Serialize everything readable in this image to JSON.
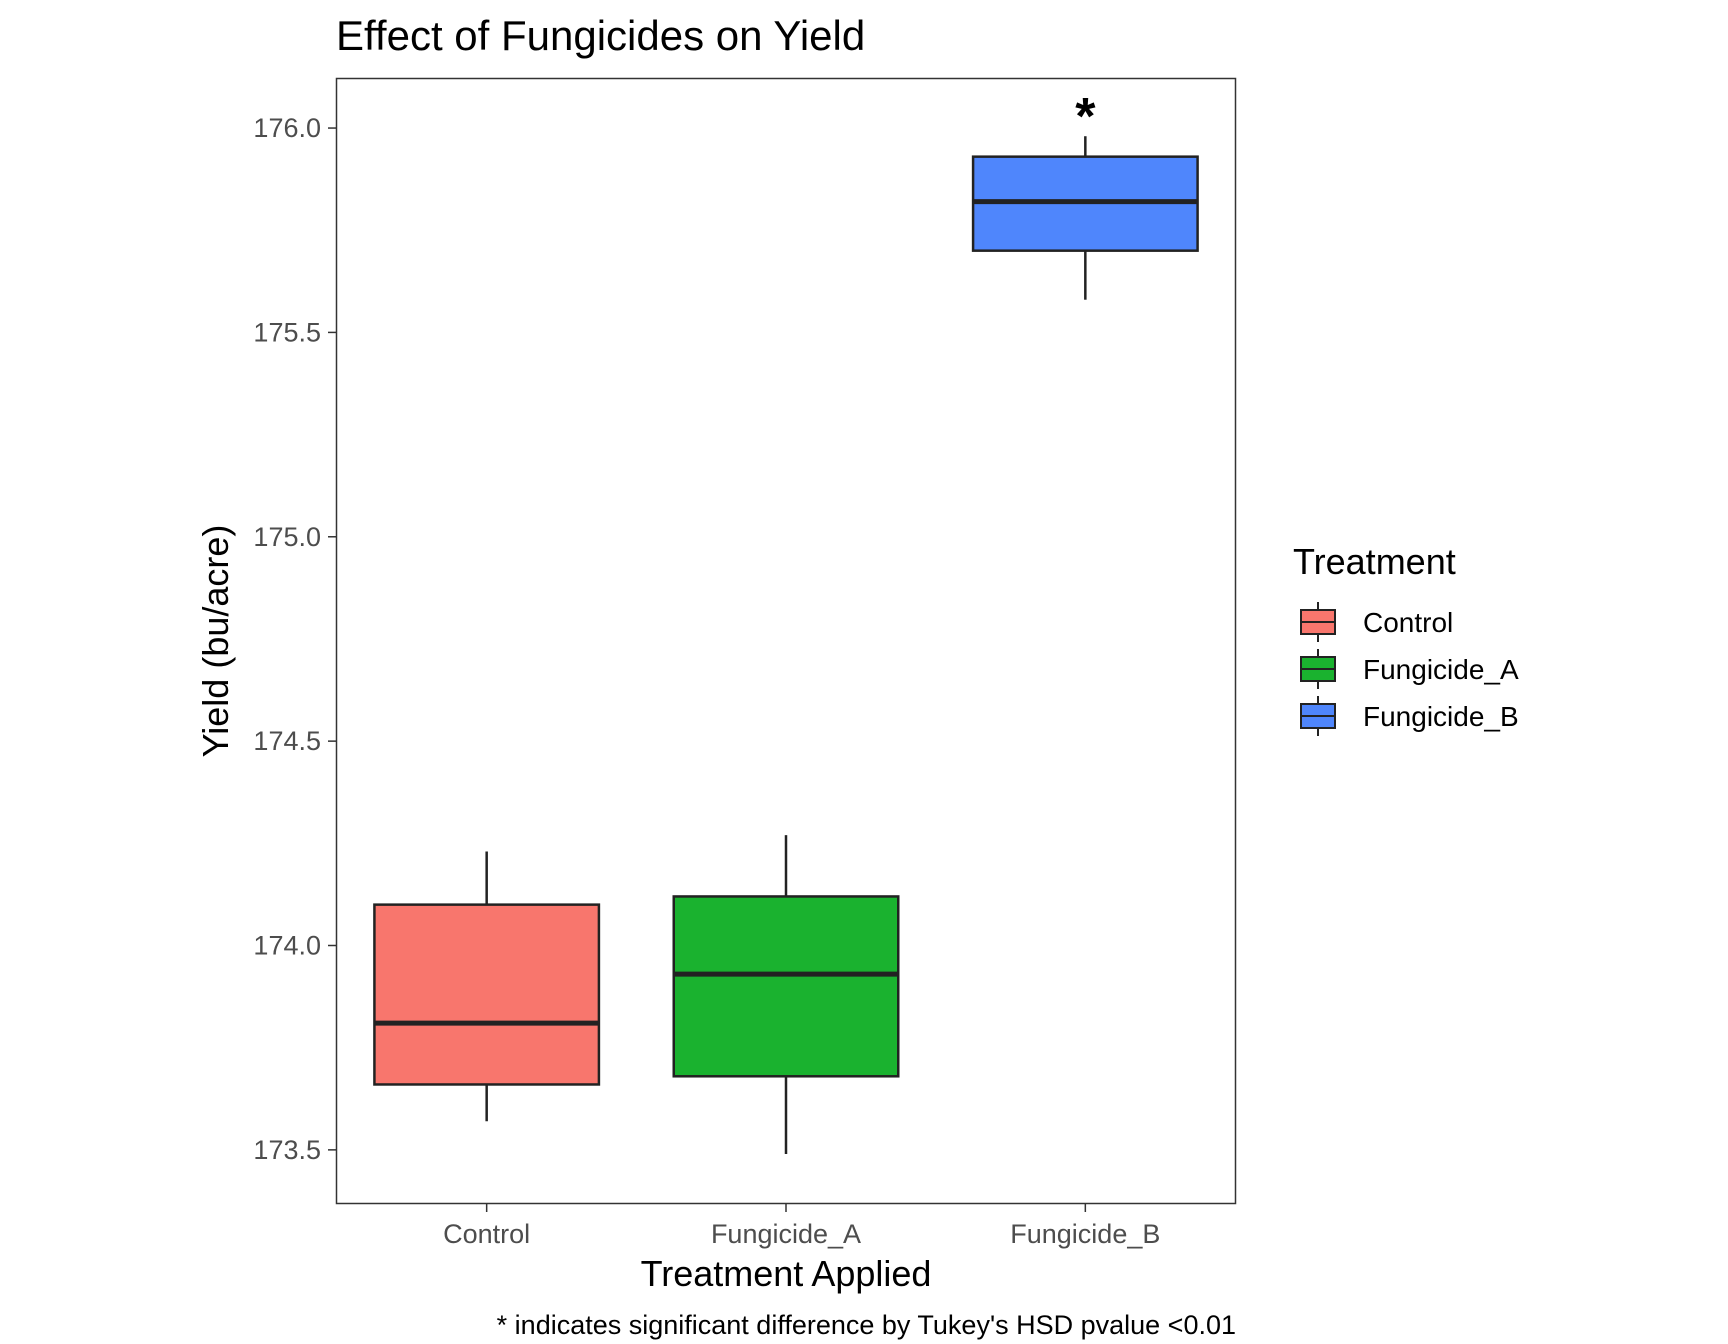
{
  "chart_data": {
    "type": "boxplot",
    "title": "Effect of Fungicides on Yield",
    "xlabel": "Treatment Applied",
    "ylabel": "Yield (bu/acre)",
    "caption": "* indicates significant difference by Tukey's HSD pvalue <0.01",
    "ylim": [
      173.37,
      176.12
    ],
    "yticks": [
      173.5,
      174.0,
      174.5,
      175.0,
      175.5,
      176.0
    ],
    "ytick_labels": [
      "173.5",
      "174.0",
      "174.5",
      "175.0",
      "175.5",
      "176.0"
    ],
    "categories": [
      "Control",
      "Fungicide_A",
      "Fungicide_B"
    ],
    "boxes": [
      {
        "category": "Control",
        "min": 173.57,
        "q1": 173.66,
        "median": 173.81,
        "q3": 174.1,
        "max": 174.23,
        "color": "#F8766D",
        "annotation": ""
      },
      {
        "category": "Fungicide_A",
        "min": 173.49,
        "q1": 173.68,
        "median": 173.93,
        "q3": 174.12,
        "max": 174.27,
        "color": "#1AB22F",
        "annotation": ""
      },
      {
        "category": "Fungicide_B",
        "min": 175.58,
        "q1": 175.7,
        "median": 175.82,
        "q3": 175.93,
        "max": 175.98,
        "color": "#4F86FC",
        "annotation": "*"
      }
    ],
    "legend": {
      "title": "Treatment",
      "position": "right",
      "items": [
        "Control",
        "Fungicide_A",
        "Fungicide_B"
      ]
    },
    "grid": false
  }
}
